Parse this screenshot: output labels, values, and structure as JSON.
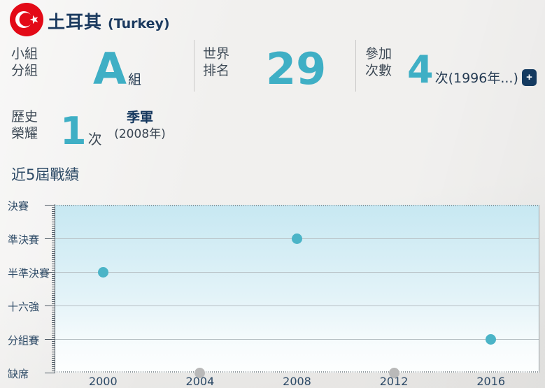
{
  "header": {
    "flag": "turkey-flag",
    "title_zh": "土耳其",
    "title_en": "(Turkey)"
  },
  "stats": [
    {
      "label1": "小組",
      "label2": "分組",
      "value": "A",
      "suffix": "組"
    },
    {
      "label1": "世界",
      "label2": "排名",
      "value": "29",
      "suffix": ""
    },
    {
      "label1": "參加",
      "label2": "次數",
      "value": "4",
      "suffix": "次(1996年...)",
      "expand_label": "+"
    }
  ],
  "honor": {
    "label1": "歷史",
    "label2": "榮耀",
    "value": "1",
    "suffix": "次",
    "award_title": "季軍",
    "award_year": "(2008年)"
  },
  "section_title": "近5屆戰績",
  "chart_data": {
    "type": "scatter",
    "title": "近5屆戰績",
    "x_categories": [
      "2000",
      "2004",
      "2008",
      "2012",
      "2016"
    ],
    "y_categories": [
      "決賽",
      "準決賽",
      "半準決賽",
      "十六強",
      "分組賽",
      "缺席"
    ],
    "points": [
      {
        "year": "2000",
        "result": "半準決賽",
        "status": "participated"
      },
      {
        "year": "2004",
        "result": "缺席",
        "status": "absent"
      },
      {
        "year": "2008",
        "result": "準決賽",
        "status": "participated"
      },
      {
        "year": "2012",
        "result": "缺席",
        "status": "absent"
      },
      {
        "year": "2016",
        "result": "分組賽",
        "status": "participated"
      }
    ],
    "point_colors": {
      "participated": "#4BB4C7",
      "absent": "#B9B9B9"
    },
    "grid": true,
    "legend": "none"
  },
  "colors": {
    "accent_teal": "#3FAFC5",
    "navy": "#1B3A5F",
    "label_dark": "#3E4A56",
    "axis_text": "#2D4A66",
    "flag_red": "#E30A17",
    "plus_button_bg": "#143A60",
    "gridline": "#B7C0C4",
    "chart_bg_top": "#C7E8F2",
    "chart_bg_bottom": "#FDFEFE"
  }
}
